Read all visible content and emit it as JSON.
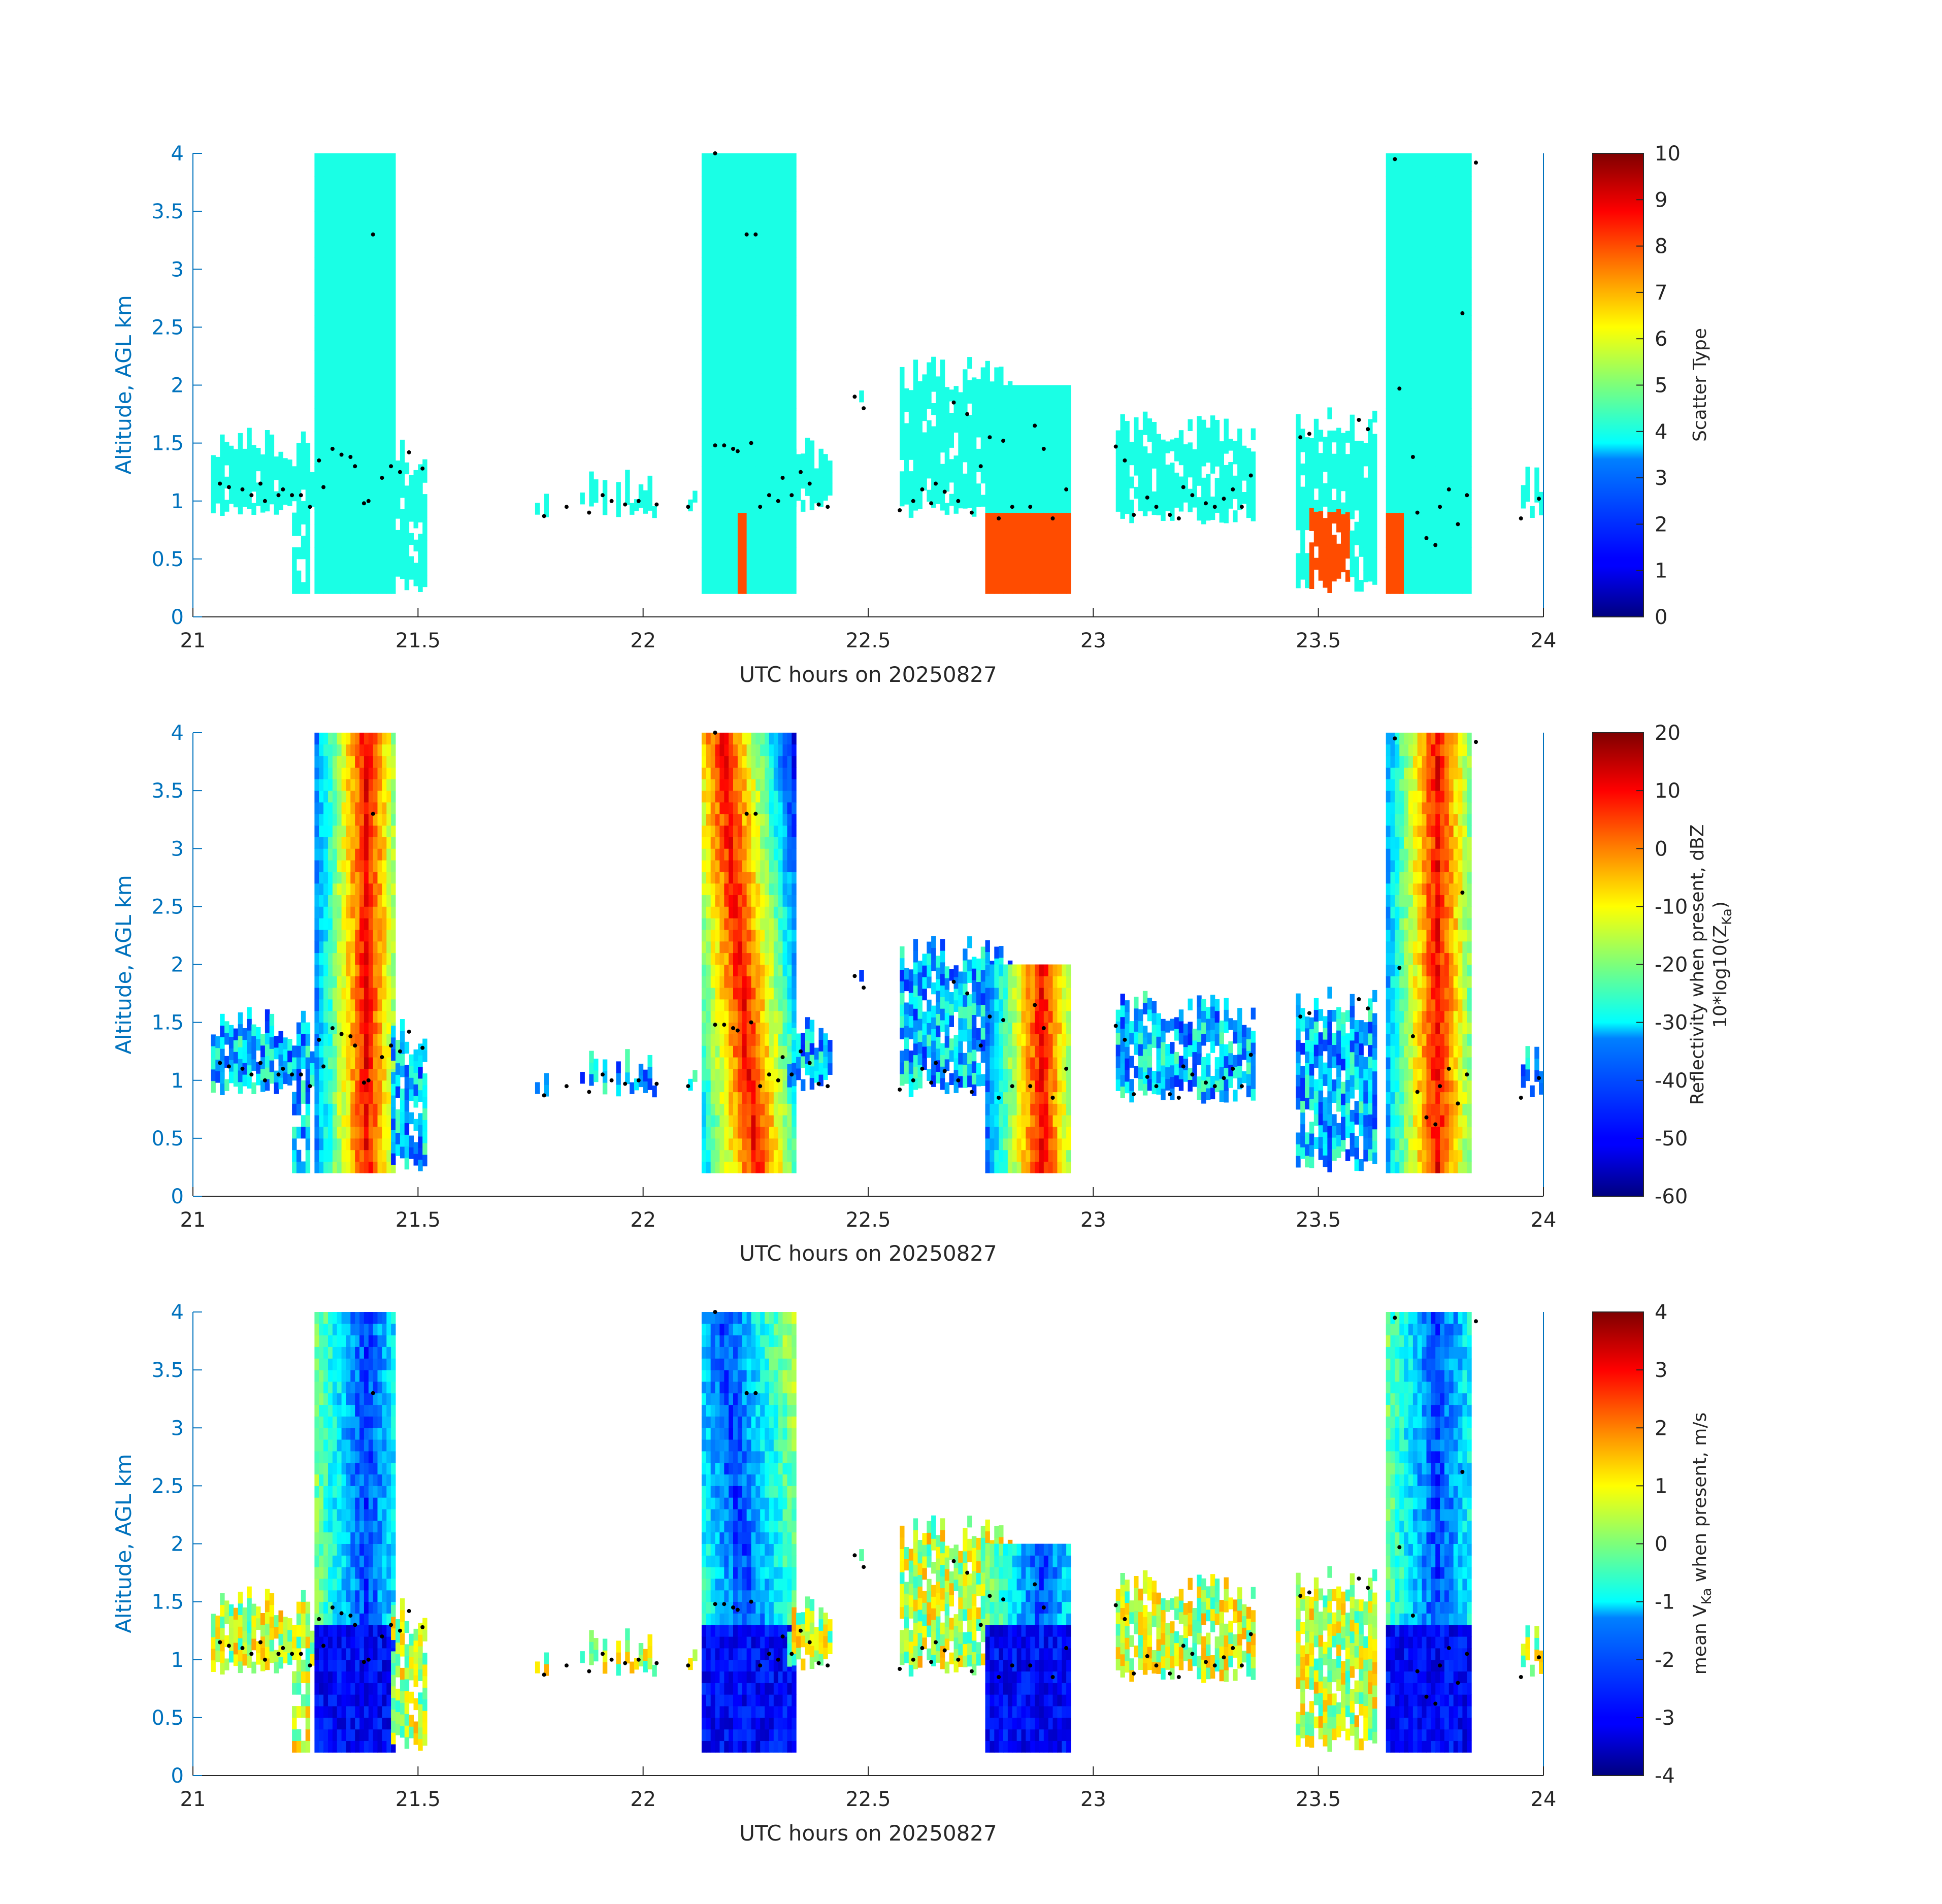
{
  "figure": {
    "date_label": "UTC hours on 20250827",
    "accent_color": "#0072bd"
  },
  "chart_data": [
    {
      "type": "heatmap",
      "title": "",
      "xlabel": "UTC hours on 20250827",
      "ylabel": "Altitude, AGL km",
      "xlim": [
        21,
        24
      ],
      "ylim": [
        0,
        4
      ],
      "xticks": [
        "21",
        "21.5",
        "22",
        "22.5",
        "23",
        "23.5",
        "24"
      ],
      "yticks": [
        "0",
        "0.5",
        "1",
        "1.5",
        "2",
        "2.5",
        "3",
        "3.5",
        "4"
      ],
      "colormap": "jet",
      "colorbar": {
        "label": "Scatter Type",
        "range": [
          0,
          10
        ],
        "ticks": [
          "0",
          "1",
          "2",
          "3",
          "4",
          "5",
          "6",
          "7",
          "8",
          "9",
          "10"
        ]
      },
      "field": "scatter_type"
    },
    {
      "type": "heatmap",
      "title": "",
      "xlabel": "UTC hours on 20250827",
      "ylabel": "Altitude, AGL km",
      "xlim": [
        21,
        24
      ],
      "ylim": [
        0,
        4
      ],
      "xticks": [
        "21",
        "21.5",
        "22",
        "22.5",
        "23",
        "23.5",
        "24"
      ],
      "yticks": [
        "0",
        "0.5",
        "1",
        "1.5",
        "2",
        "2.5",
        "3",
        "3.5",
        "4"
      ],
      "colormap": "jet",
      "colorbar": {
        "label": "Reflectivity when present, dBZ",
        "label2": "10*log10(Z",
        "label2_sub": "Ka",
        "label2_end": ")",
        "range": [
          -60,
          20
        ],
        "ticks": [
          "-60",
          "-50",
          "-40",
          "-30",
          "-20",
          "-10",
          "0",
          "10",
          "20"
        ]
      },
      "field": "reflectivity"
    },
    {
      "type": "heatmap",
      "title": "",
      "xlabel": "UTC hours on 20250827",
      "ylabel": "Altitude, AGL km",
      "xlim": [
        21,
        24
      ],
      "ylim": [
        0,
        4
      ],
      "xticks": [
        "21",
        "21.5",
        "22",
        "22.5",
        "23",
        "23.5",
        "24"
      ],
      "yticks": [
        "0",
        "0.5",
        "1",
        "1.5",
        "2",
        "2.5",
        "3",
        "3.5",
        "4"
      ],
      "colormap": "jet",
      "colorbar": {
        "label_pre": "mean V",
        "label_sub": "Ka",
        "label_post": " when present, m/s",
        "range": [
          -4,
          4
        ],
        "ticks": [
          "-4",
          "-3",
          "-2",
          "-1",
          "0",
          "1",
          "2",
          "3",
          "4"
        ]
      },
      "field": "velocity"
    }
  ],
  "cloud_base_points": [
    [
      21.06,
      1.15
    ],
    [
      21.08,
      1.12
    ],
    [
      21.11,
      1.1
    ],
    [
      21.13,
      1.05
    ],
    [
      21.15,
      1.15
    ],
    [
      21.16,
      1.0
    ],
    [
      21.19,
      1.05
    ],
    [
      21.2,
      1.1
    ],
    [
      21.22,
      1.05
    ],
    [
      21.24,
      1.05
    ],
    [
      21.26,
      0.95
    ],
    [
      21.28,
      1.35
    ],
    [
      21.29,
      1.12
    ],
    [
      21.31,
      1.45
    ],
    [
      21.33,
      1.4
    ],
    [
      21.35,
      1.38
    ],
    [
      21.36,
      1.3
    ],
    [
      21.38,
      0.98
    ],
    [
      21.39,
      1.0
    ],
    [
      21.4,
      3.3
    ],
    [
      21.42,
      1.2
    ],
    [
      21.44,
      1.3
    ],
    [
      21.46,
      1.25
    ],
    [
      21.48,
      1.42
    ],
    [
      21.51,
      1.28
    ],
    [
      21.78,
      0.87
    ],
    [
      21.83,
      0.95
    ],
    [
      21.88,
      0.9
    ],
    [
      21.91,
      1.05
    ],
    [
      21.93,
      1.0
    ],
    [
      21.96,
      0.97
    ],
    [
      21.99,
      1.0
    ],
    [
      22.03,
      0.97
    ],
    [
      22.1,
      0.95
    ],
    [
      22.16,
      4.0
    ],
    [
      22.16,
      1.48
    ],
    [
      22.18,
      1.48
    ],
    [
      22.2,
      1.45
    ],
    [
      22.21,
      1.43
    ],
    [
      22.23,
      3.3
    ],
    [
      22.25,
      3.3
    ],
    [
      22.24,
      1.5
    ],
    [
      22.26,
      0.95
    ],
    [
      22.28,
      1.05
    ],
    [
      22.3,
      1.0
    ],
    [
      22.31,
      1.2
    ],
    [
      22.33,
      1.05
    ],
    [
      22.35,
      1.25
    ],
    [
      22.37,
      1.15
    ],
    [
      22.39,
      0.97
    ],
    [
      22.41,
      0.95
    ],
    [
      22.47,
      1.9
    ],
    [
      22.49,
      1.8
    ],
    [
      22.57,
      0.92
    ],
    [
      22.6,
      1.0
    ],
    [
      22.62,
      1.1
    ],
    [
      22.64,
      0.98
    ],
    [
      22.65,
      1.15
    ],
    [
      22.67,
      1.08
    ],
    [
      22.69,
      1.85
    ],
    [
      22.7,
      1.0
    ],
    [
      22.72,
      1.75
    ],
    [
      22.73,
      0.9
    ],
    [
      22.75,
      1.3
    ],
    [
      22.77,
      1.55
    ],
    [
      22.79,
      0.85
    ],
    [
      22.8,
      1.52
    ],
    [
      22.82,
      0.95
    ],
    [
      22.86,
      0.95
    ],
    [
      22.87,
      1.65
    ],
    [
      22.89,
      1.45
    ],
    [
      22.91,
      0.85
    ],
    [
      22.94,
      1.1
    ],
    [
      23.05,
      1.47
    ],
    [
      23.07,
      1.35
    ],
    [
      23.09,
      0.88
    ],
    [
      23.12,
      1.03
    ],
    [
      23.14,
      0.95
    ],
    [
      23.17,
      0.88
    ],
    [
      23.19,
      0.85
    ],
    [
      23.2,
      1.12
    ],
    [
      23.22,
      1.05
    ],
    [
      23.25,
      0.98
    ],
    [
      23.27,
      0.95
    ],
    [
      23.29,
      1.02
    ],
    [
      23.31,
      1.1
    ],
    [
      23.33,
      0.95
    ],
    [
      23.35,
      1.22
    ],
    [
      23.46,
      1.55
    ],
    [
      23.48,
      1.58
    ],
    [
      23.59,
      1.7
    ],
    [
      23.61,
      1.62
    ],
    [
      23.67,
      3.95
    ],
    [
      23.68,
      1.97
    ],
    [
      23.71,
      1.38
    ],
    [
      23.72,
      0.9
    ],
    [
      23.74,
      0.68
    ],
    [
      23.76,
      0.62
    ],
    [
      23.77,
      0.95
    ],
    [
      23.79,
      1.1
    ],
    [
      23.81,
      0.8
    ],
    [
      23.82,
      2.62
    ],
    [
      23.83,
      1.05
    ],
    [
      23.85,
      3.92
    ],
    [
      23.95,
      0.85
    ],
    [
      23.99,
      1.02
    ]
  ]
}
